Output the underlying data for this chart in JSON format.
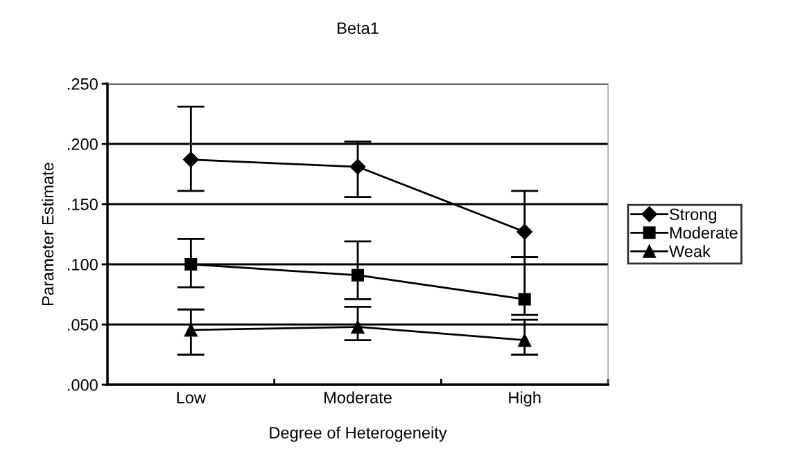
{
  "chart_data": {
    "type": "line",
    "title": "Beta1",
    "xlabel": "Degree of Heterogeneity",
    "ylabel": "Parameter Estimate",
    "categories": [
      "Low",
      "Moderate",
      "High"
    ],
    "series": [
      {
        "name": "Strong",
        "color": "#000000",
        "marker": "diamond",
        "values": [
          0.187,
          0.181,
          0.127
        ],
        "errors": [
          [
            0.161,
            0.231
          ],
          [
            0.156,
            0.202
          ],
          [
            0.106,
            0.161
          ]
        ]
      },
      {
        "name": "Moderate",
        "color": "#000000",
        "marker": "square",
        "values": [
          0.1,
          0.091,
          0.071
        ],
        "errors": [
          [
            0.081,
            0.121
          ],
          [
            0.071,
            0.119
          ],
          [
            0.058,
            0.106
          ]
        ]
      },
      {
        "name": "Weak",
        "color": "#000000",
        "marker": "triangle",
        "values": [
          0.0455,
          0.048,
          0.037
        ],
        "errors": [
          [
            0.025,
            0.0625
          ],
          [
            0.037,
            0.0647
          ],
          [
            0.025,
            0.054
          ]
        ]
      }
    ],
    "ylim": [
      0,
      0.25
    ],
    "yticks": [
      {
        "value": 0,
        "label": ".000"
      },
      {
        "value": 0.05,
        "label": ".050"
      },
      {
        "value": 0.1,
        "label": ".100"
      },
      {
        "value": 0.15,
        "label": ".150"
      },
      {
        "value": 0.2,
        "label": ".200"
      },
      {
        "value": 0.25,
        "label": ".250"
      }
    ],
    "grid": "y",
    "legend": "right",
    "line_style": "solid"
  }
}
